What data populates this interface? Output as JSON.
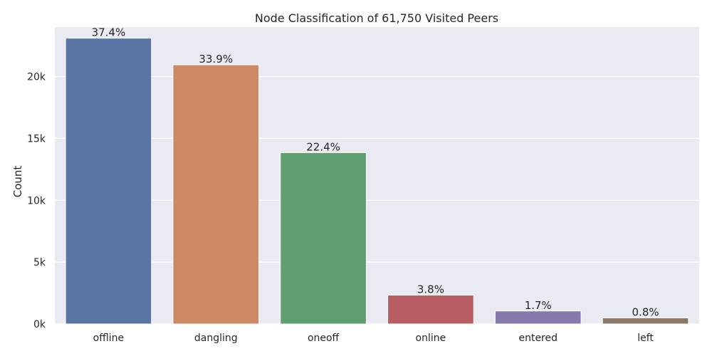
{
  "chart_data": {
    "type": "bar",
    "title": "Node Classification of 61,750 Visited Peers",
    "xlabel": "",
    "ylabel": "Count",
    "ylim": [
      0,
      24000
    ],
    "yticks": [
      0,
      5000,
      10000,
      15000,
      20000
    ],
    "ytick_labels": [
      "0k",
      "5k",
      "10k",
      "15k",
      "20k"
    ],
    "categories": [
      "offline",
      "dangling",
      "oneoff",
      "online",
      "entered",
      "left"
    ],
    "values": [
      23100,
      20950,
      13850,
      2330,
      1050,
      490
    ],
    "bar_labels": [
      "37.4%",
      "33.9%",
      "22.4%",
      "3.8%",
      "1.7%",
      "0.8%"
    ],
    "colors": [
      "#5875a4",
      "#cc8963",
      "#5f9e6e",
      "#b55d60",
      "#857aab",
      "#8d7866"
    ],
    "background": "#eaeaf2",
    "grid": true,
    "legend": "none"
  }
}
